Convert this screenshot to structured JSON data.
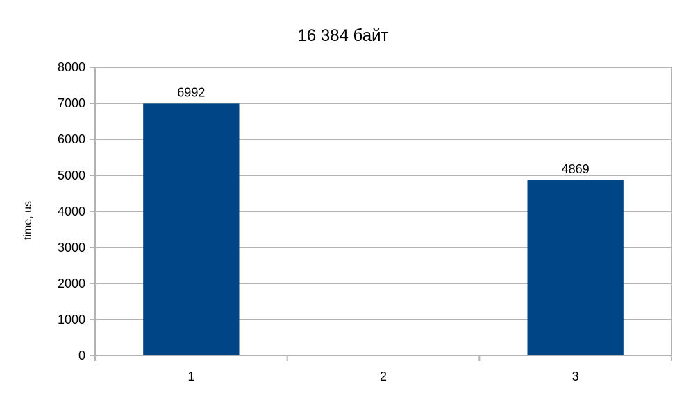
{
  "chart_data": {
    "type": "bar",
    "title": "16 384 байт",
    "xlabel": "",
    "ylabel": "time, us",
    "categories": [
      "1",
      "2",
      "3"
    ],
    "values": [
      6992,
      null,
      4869
    ],
    "data_labels": [
      "6992",
      "",
      "4869"
    ],
    "ylim": [
      0,
      8000
    ],
    "yticks": [
      0,
      1000,
      2000,
      3000,
      4000,
      5000,
      6000,
      7000,
      8000
    ],
    "grid": true,
    "legend": "none",
    "bar_color": "#004586",
    "grid_color": "#b3b3b3"
  }
}
